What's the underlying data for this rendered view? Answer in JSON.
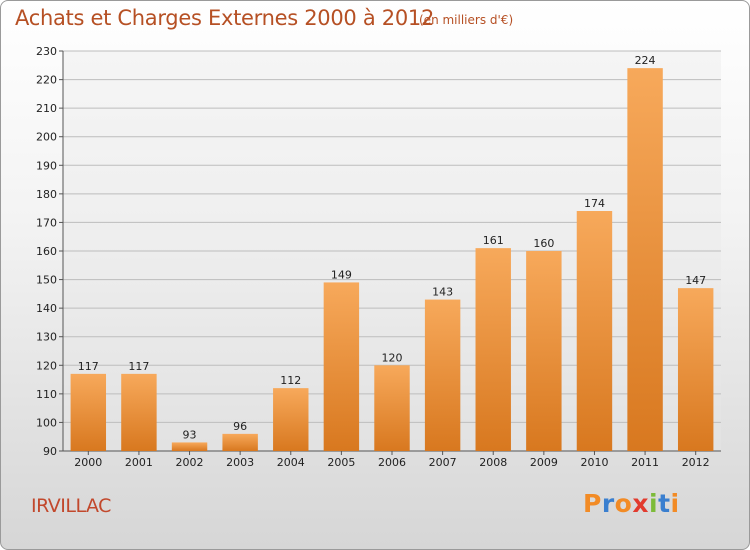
{
  "header": {
    "title": "Achats et Charges Externes 2000 à 2012",
    "subtitle": "(en milliers d'€)"
  },
  "footer": {
    "commune": "IRVILLAC",
    "logo_text": "Proxiti"
  },
  "colors": {
    "bar_top": "#f7a95b",
    "bar_bottom": "#d8781f",
    "title": "#b65024",
    "commune": "#c2482c",
    "logo_letters": [
      "#f28b25",
      "#3a7fcf",
      "#f28b25",
      "#e23b2e",
      "#7dbb3a",
      "#3a7fcf",
      "#f28b25"
    ]
  },
  "chart_data": {
    "type": "bar",
    "title": "Achats et Charges Externes 2000 à 2012",
    "subtitle": "(en milliers d'€)",
    "categories": [
      "2000",
      "2001",
      "2002",
      "2003",
      "2004",
      "2005",
      "2006",
      "2007",
      "2008",
      "2009",
      "2010",
      "2011",
      "2012"
    ],
    "values": [
      117,
      117,
      93,
      96,
      112,
      149,
      120,
      143,
      161,
      160,
      174,
      224,
      147
    ],
    "ylim": [
      90,
      230
    ],
    "yticks": [
      90,
      100,
      110,
      120,
      130,
      140,
      150,
      160,
      170,
      180,
      190,
      200,
      210,
      220,
      230
    ],
    "grid": true,
    "xlabel": "",
    "ylabel": ""
  }
}
